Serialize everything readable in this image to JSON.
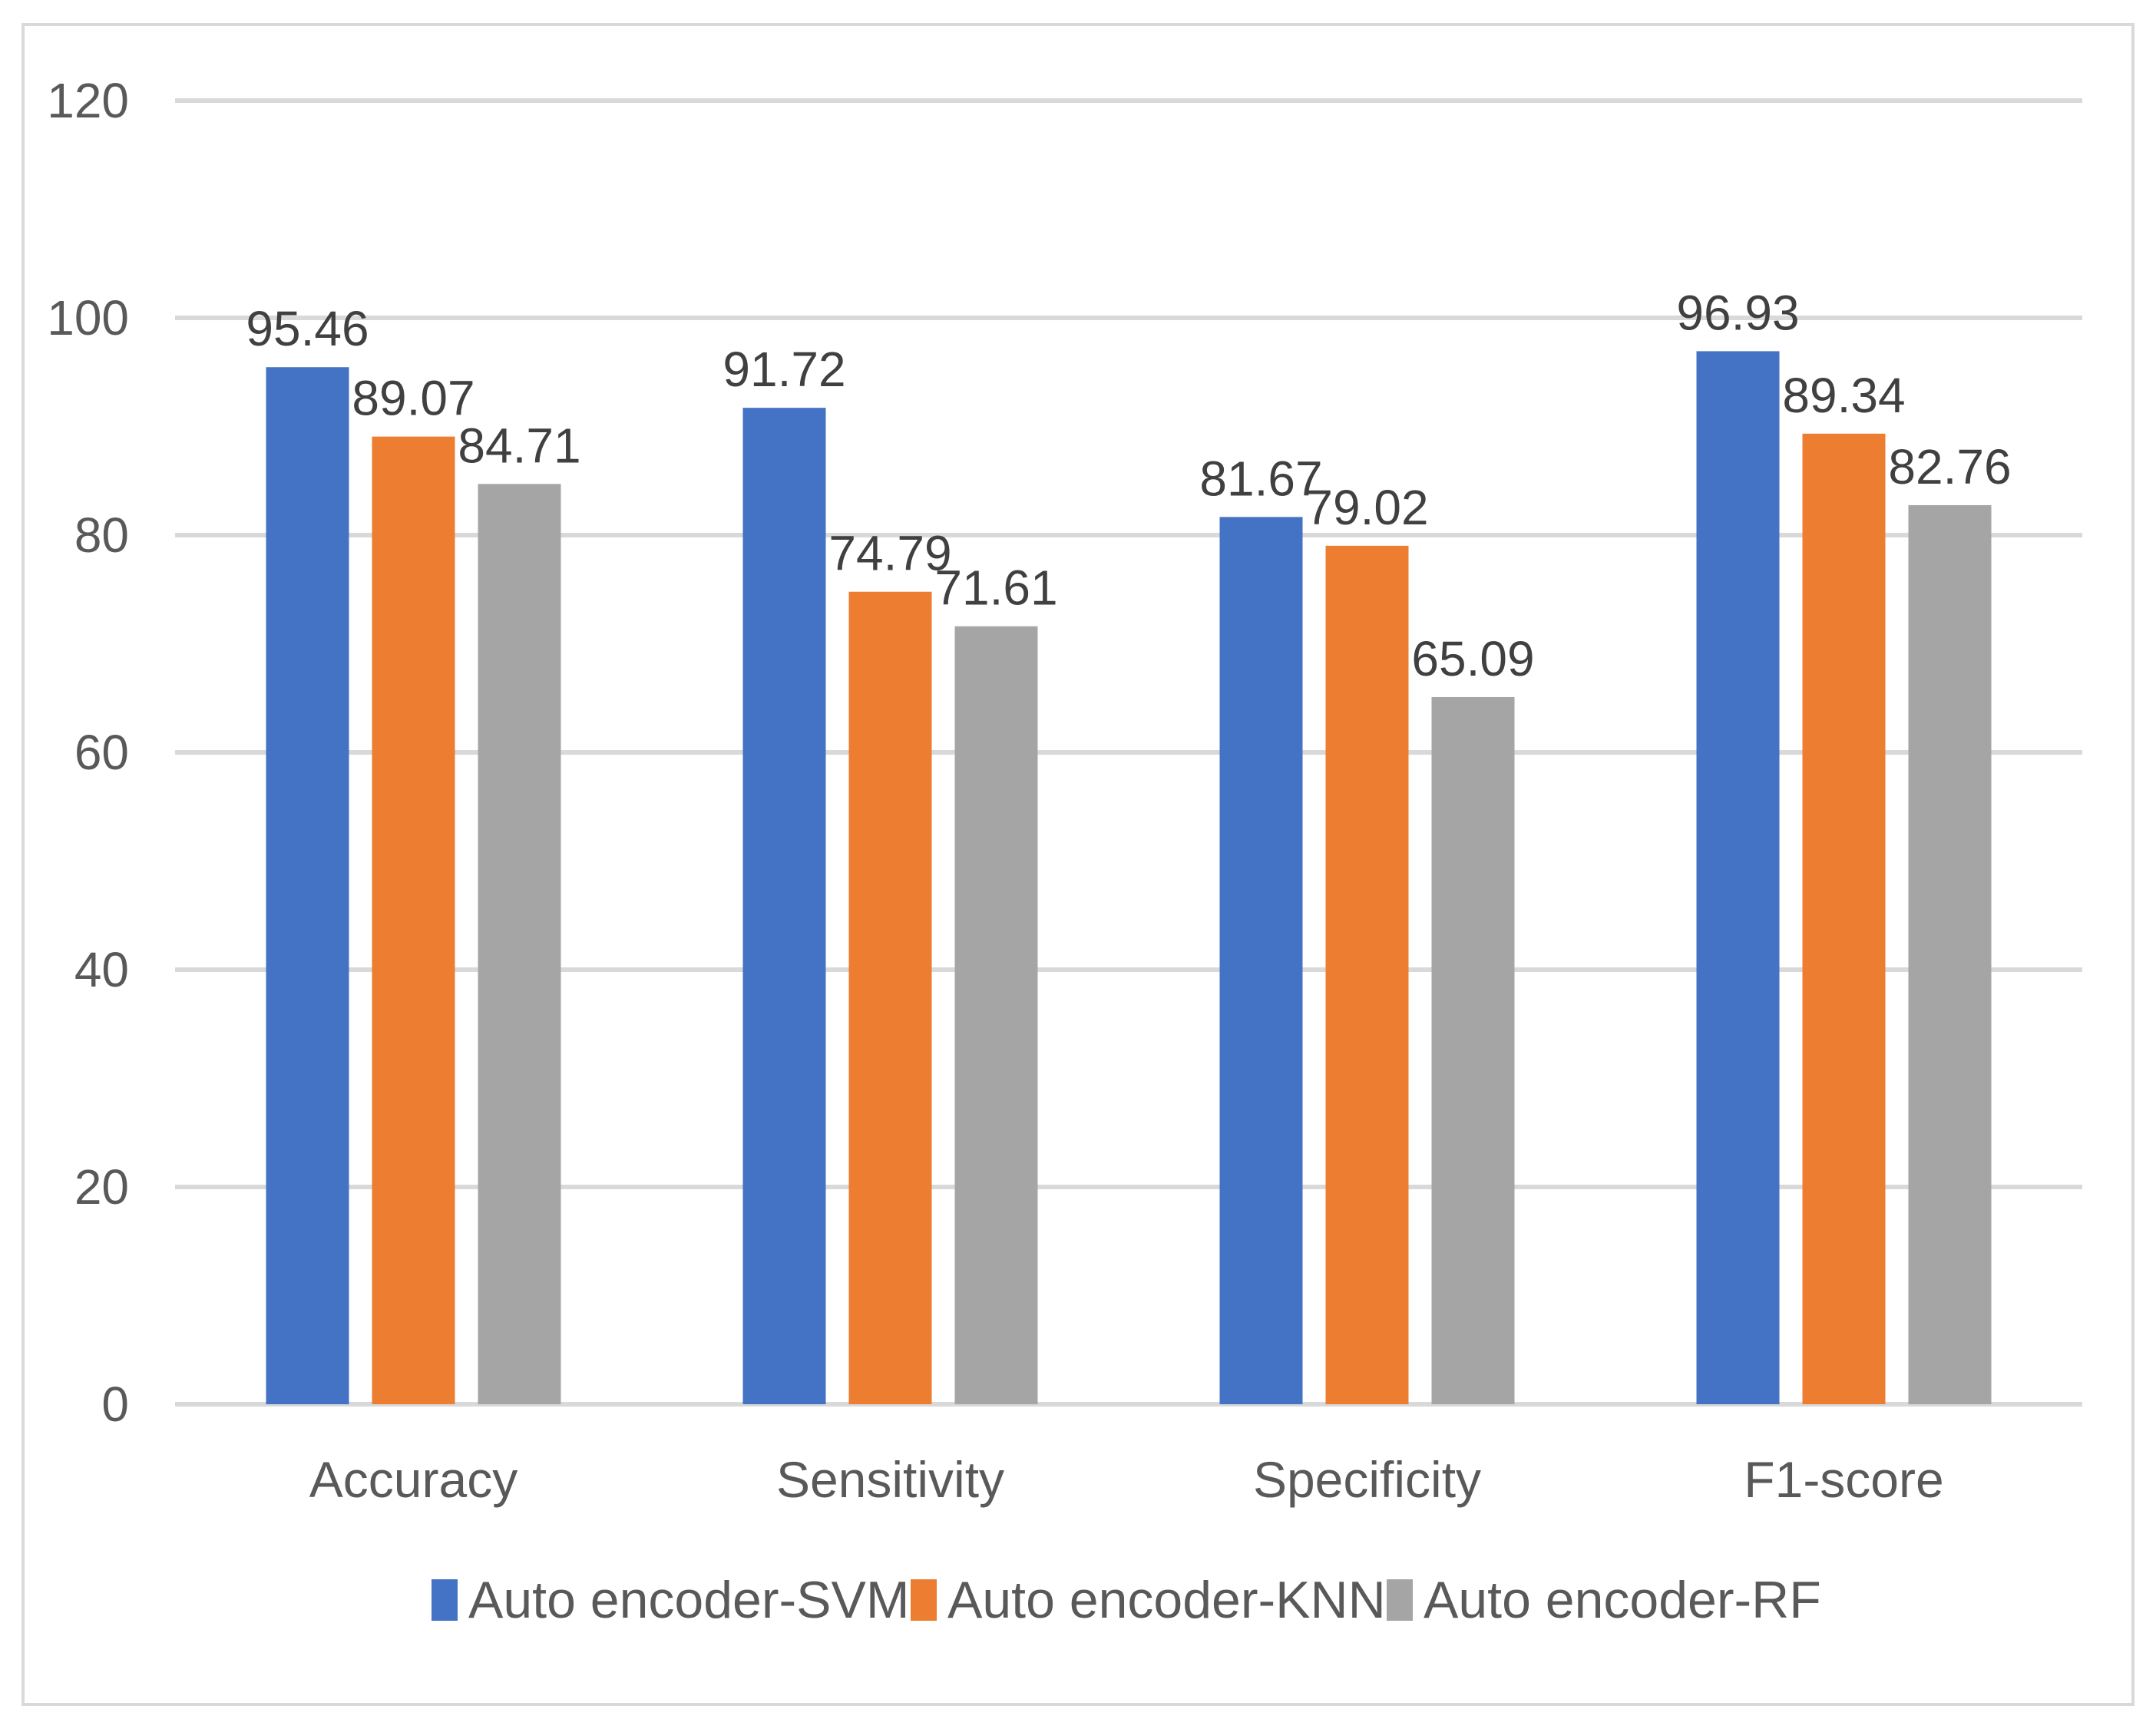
{
  "chart_data": {
    "type": "bar",
    "title": "",
    "xlabel": "",
    "ylabel": "",
    "categories": [
      "Accuracy",
      "Sensitivity",
      "Specificity",
      "F1-score"
    ],
    "series": [
      {
        "name": "Auto encoder-SVM",
        "color": "#4472c4",
        "values": [
          95.46,
          91.72,
          81.67,
          96.93
        ]
      },
      {
        "name": "Auto encoder-KNN",
        "color": "#ed7d31",
        "values": [
          89.07,
          74.79,
          79.02,
          89.34
        ]
      },
      {
        "name": "Auto encoder-RF",
        "color": "#a5a5a5",
        "values": [
          84.71,
          71.61,
          65.09,
          82.76
        ]
      }
    ],
    "ylim": [
      0,
      120
    ],
    "yticks": [
      0,
      20,
      40,
      60,
      80,
      100,
      120
    ],
    "grid": true,
    "legend_position": "bottom"
  }
}
